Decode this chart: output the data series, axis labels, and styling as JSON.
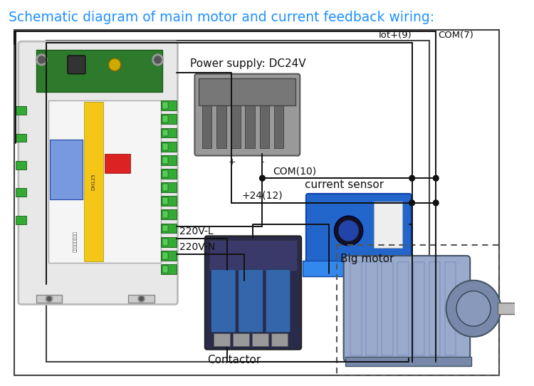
{
  "title": "Schematic diagram of main motor and current feedback wiring:",
  "title_color": "#1e90ff",
  "title_fontsize": 13.5,
  "bg_color": "#ffffff",
  "labels": {
    "power_supply": "Power supply: DC24V",
    "iot9": "Iot+(9)",
    "com7": "COM(7)",
    "com10": "COM(10)",
    "plus24_12": "+24(12)",
    "v220l": "220V-L",
    "v220n": "220V-N",
    "current_sensor": "current sensor",
    "big_motor": "Big motor",
    "contactor": "Contactor",
    "plus": "+",
    "minus": "-"
  },
  "wire_color": "#111111",
  "wire_lw": 1.4,
  "figsize": [
    7.5,
    5.42
  ],
  "dpi": 100
}
